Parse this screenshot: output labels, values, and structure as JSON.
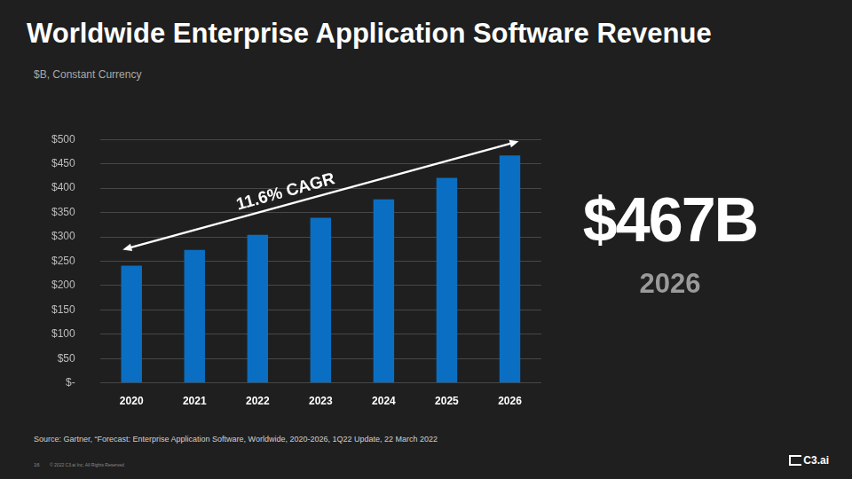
{
  "chart_data": {
    "type": "bar",
    "title": "Worldwide Enterprise Application Software Revenue",
    "subtitle": "$B, Constant Currency",
    "categories": [
      "2020",
      "2021",
      "2022",
      "2023",
      "2024",
      "2025",
      "2026"
    ],
    "values": [
      241,
      273,
      304,
      339,
      377,
      421,
      467
    ],
    "color": "#0a6fc2",
    "ylim": [
      0,
      500
    ],
    "yticks": [
      {
        "value": 0,
        "label": "$-"
      },
      {
        "value": 50,
        "label": "$50"
      },
      {
        "value": 100,
        "label": "$100"
      },
      {
        "value": 150,
        "label": "$150"
      },
      {
        "value": 200,
        "label": "$200"
      },
      {
        "value": 250,
        "label": "$250"
      },
      {
        "value": 300,
        "label": "$300"
      },
      {
        "value": 350,
        "label": "$350"
      },
      {
        "value": 400,
        "label": "$400"
      },
      {
        "value": 450,
        "label": "$450"
      },
      {
        "value": 500,
        "label": "$500"
      }
    ],
    "grid": true,
    "annotation": "11.6% CAGR",
    "callout": {
      "label": "$467B",
      "category": "2026"
    },
    "source": "Source: Gartner, “Forecast: Enterprise Application Software, Worldwide, 2020-2026, 1Q22 Update, 22 March 2022",
    "footer": {
      "page": "16",
      "copyright": "© 2022 C3.ai Inc. All Rights Reserved",
      "logo": "C3.ai"
    }
  }
}
